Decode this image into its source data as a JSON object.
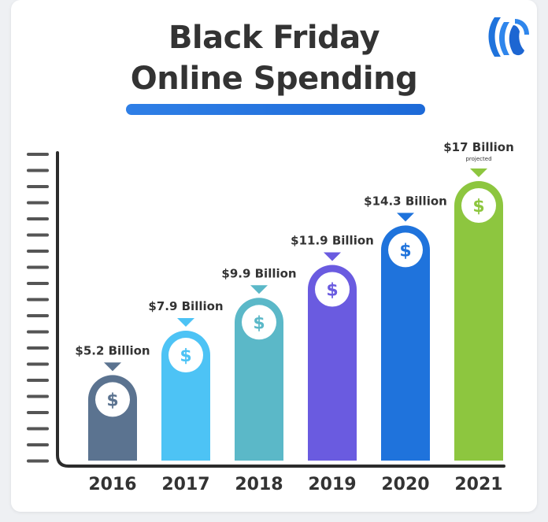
{
  "title_line1": "Black Friday",
  "title_line2": "Online Spending",
  "logo_icon": "wave-logo-icon",
  "dollar_symbol": "$",
  "colors": {
    "title": "#333333",
    "underline": "#2a78e2",
    "axis": "#2b2b2b",
    "ticks": "#555555",
    "bars": [
      "#5b7390",
      "#4dc3f5",
      "#5bb8c8",
      "#6a5be0",
      "#1f73dc",
      "#8dc63f"
    ]
  },
  "chart_data": {
    "type": "bar",
    "title": "Black Friday Online Spending",
    "categories": [
      "2016",
      "2017",
      "2018",
      "2019",
      "2020",
      "2021"
    ],
    "values": [
      5.2,
      7.9,
      9.9,
      11.9,
      14.3,
      17
    ],
    "unit": "Billion USD",
    "data_labels": [
      "$5.2 Billion",
      "$7.9 Billion",
      "$9.9 Billion",
      "$11.9 Billion",
      "$14.3 Billion",
      "$17 Billion"
    ],
    "annotations": [
      "",
      "",
      "",
      "",
      "",
      "projected"
    ],
    "xlabel": "",
    "ylabel": "",
    "legend": "none",
    "grid": false
  }
}
